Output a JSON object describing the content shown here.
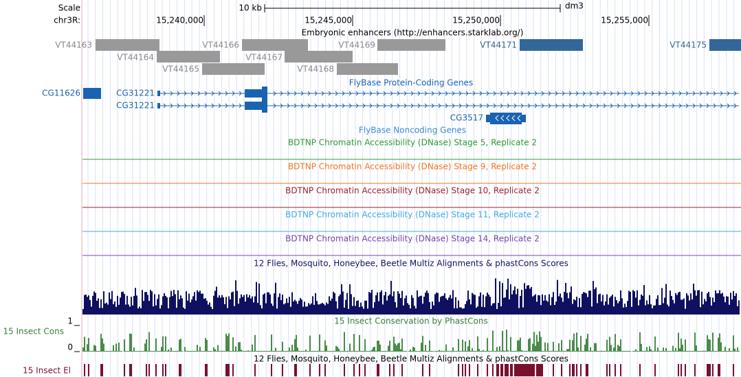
{
  "header": {
    "scale_label": "Scale",
    "scale_bar": "10 kb",
    "assembly": "dm3",
    "chrom": "chr3R:",
    "positions": [
      "15,240,000",
      "15,245,000",
      "15,250,000",
      "15,255,000"
    ]
  },
  "enhancers": {
    "title": "Embryonic enhancers (http://enhancers.starklab.org/)",
    "features": [
      "VT44163",
      "VT44164",
      "VT44165",
      "VT44166",
      "VT44167",
      "VT44168",
      "VT44169",
      "VT44171",
      "VT44175"
    ]
  },
  "coding_genes": {
    "title": "FlyBase Protein-Coding Genes",
    "features": [
      "CG11626",
      "CG31221",
      "CG31221",
      "CG3517"
    ]
  },
  "noncoding_genes": {
    "title": "FlyBase Noncoding Genes"
  },
  "dnase_tracks": [
    "BDTNP Chromatin Accessibility (DNase) Stage 5, Replicate 2",
    "BDTNP Chromatin Accessibility (DNase) Stage 9, Replicate 2",
    "BDTNP Chromatin Accessibility (DNase) Stage 10, Replicate 2",
    "BDTNP Chromatin Accessibility (DNase) Stage 11, Replicate 2",
    "BDTNP Chromatin Accessibility (DNase) Stage 14, Replicate 2"
  ],
  "multiz": {
    "title": "12 Flies, Mosquito, Honeybee, Beetle Multiz Alignments & phastCons Scores"
  },
  "phastcons": {
    "title": "15 Insect Conservation by PhastCons",
    "side_label": "15 Insect Cons",
    "axis": [
      1,
      0
    ]
  },
  "elements": {
    "title": "12 Flies, Mosquito, Honeybee, Beetle Multiz Alignments & phastCons Scores",
    "side_label": "15 Insect El"
  }
}
